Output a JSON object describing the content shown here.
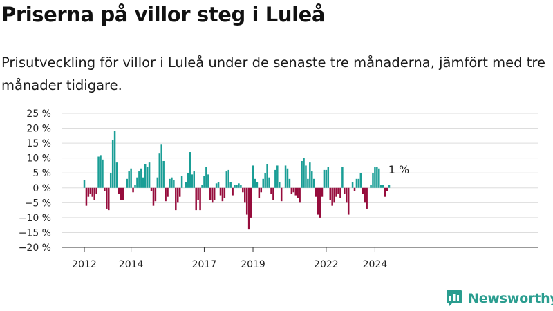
{
  "title": "Priserna på villor steg i Luleå",
  "subtitle": "Prisutveckling för villor i Luleå under de senaste tre månaderna, jämfört med tre månader tidigare.",
  "brand": "Newsworthy",
  "colors": {
    "positive": "#1a9e96",
    "negative": "#960c3c",
    "grid": "#dddddd",
    "text": "#222222",
    "brand": "#2a9d8f"
  },
  "chart_data": {
    "type": "bar",
    "ylim": [
      -20,
      25
    ],
    "y_ticks": [
      25,
      20,
      15,
      10,
      5,
      0,
      -5,
      -10,
      -15,
      -20
    ],
    "y_tick_labels": [
      "25 %",
      "20 %",
      "15 %",
      "10 %",
      "5 %",
      "0 %",
      "−5 %",
      "−10 %",
      "−15 %",
      "−20 %"
    ],
    "x_tick_labels": [
      {
        "label": "2012",
        "index": 0
      },
      {
        "label": "2014",
        "index": 23
      },
      {
        "label": "2017",
        "index": 59
      },
      {
        "label": "2019",
        "index": 83
      },
      {
        "label": "2022",
        "index": 119
      },
      {
        "label": "2024",
        "index": 143
      }
    ],
    "annotation": {
      "text": "1 %",
      "index": 155
    },
    "values": [
      2.5,
      -6,
      -3,
      -2,
      -3,
      -4,
      -2,
      10.5,
      11,
      9.5,
      -1,
      -7,
      -7.5,
      5,
      16,
      19,
      8.5,
      -2,
      -4,
      -4,
      0,
      3,
      5.5,
      6.5,
      -1.5,
      1,
      3.5,
      5.5,
      6.5,
      3.5,
      8,
      7,
      8.5,
      -1,
      -6,
      -4.5,
      3.5,
      11.5,
      14.5,
      9,
      -4.5,
      -3,
      3,
      3.5,
      2.5,
      -7.5,
      -5,
      -3,
      4,
      0,
      2,
      5,
      12,
      4.5,
      5.5,
      -7.5,
      -4,
      -7.5,
      1,
      4,
      7,
      4.5,
      -4,
      -5,
      -4,
      1.5,
      2,
      -2.5,
      -4.5,
      -3.5,
      5.5,
      6,
      2,
      -2.5,
      1,
      1,
      1.5,
      1,
      -1.5,
      -5,
      -9,
      -14,
      -10,
      7.5,
      3,
      2,
      -3.5,
      -1.5,
      3,
      5,
      8,
      3.5,
      -2,
      -4,
      6,
      7.5,
      2,
      -4.5,
      0,
      7.5,
      6.5,
      3,
      -2,
      -1.5,
      -2.5,
      -3.5,
      -5,
      9,
      10,
      7.5,
      3,
      8.5,
      5.5,
      3,
      -3,
      -9,
      -10,
      -3,
      6,
      6,
      7,
      -4,
      -6,
      -5,
      -3,
      -2,
      -3.5,
      7,
      -2,
      -5,
      -9,
      0,
      2,
      -1,
      3,
      3,
      5,
      -2,
      -5,
      -7,
      0,
      1,
      5,
      7,
      7,
      6.5,
      1,
      1,
      -3,
      -1,
      1
    ]
  }
}
